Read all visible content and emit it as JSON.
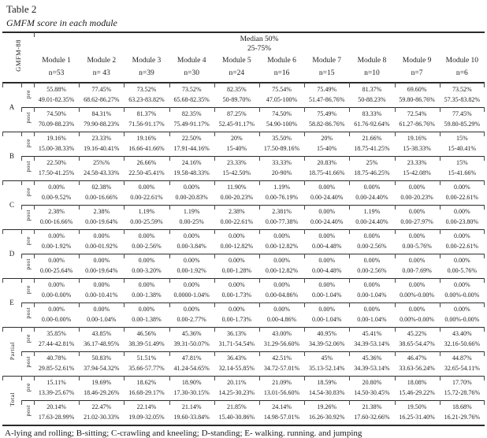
{
  "colors": {
    "text": "#1c1c1c",
    "rule": "#2b2b2b",
    "background": "#ffffff"
  },
  "title": "Table 2",
  "subtitle": "GMFM score in each module",
  "header": {
    "axis_label": "GMFM-88",
    "median_line1": "Median 50%",
    "median_line2": "25-75%",
    "modules": [
      {
        "name": "Module 1",
        "n": "n=53"
      },
      {
        "name": "Module 2",
        "n": "n= 43"
      },
      {
        "name": "Module 3",
        "n": "n=39"
      },
      {
        "name": "Module 4",
        "n": "n=30"
      },
      {
        "name": "Module 5",
        "n": "n=24"
      },
      {
        "name": "Module 6",
        "n": "n=16"
      },
      {
        "name": "Module 7",
        "n": "n=15"
      },
      {
        "name": "Module 8",
        "n": "n=10"
      },
      {
        "name": "Module 9",
        "n": "n=7"
      },
      {
        "name": "Module 10",
        "n": "n=6"
      }
    ]
  },
  "groups": [
    {
      "label": "A",
      "rotated": false,
      "rows": [
        {
          "label": "pre",
          "cells": [
            {
              "m": "55.88%",
              "r": "49.01-82.35%"
            },
            {
              "m": "77.45%",
              "r": "68.62-86.27%"
            },
            {
              "m": "73.52%",
              "r": "63.23-83.82%"
            },
            {
              "m": "73.52%",
              "r": "65.68-82.35%"
            },
            {
              "m": "82.35%",
              "r": "50-89.70%"
            },
            {
              "m": "75.54%",
              "r": "47.05-100%"
            },
            {
              "m": "75.49%",
              "r": "51.47-86.76%"
            },
            {
              "m": "81.37%",
              "r": "50-88.23%"
            },
            {
              "m": "69.60%",
              "r": "59.80-86.76%"
            },
            {
              "m": "73.52%",
              "r": "57.35-83.82%"
            }
          ]
        },
        {
          "label": "post",
          "cells": [
            {
              "m": "74.50%",
              "r": "70.09-88.23%"
            },
            {
              "m": "84.31%",
              "r": "79.90-88.23%"
            },
            {
              "m": "81.37%",
              "r": "71.56-91.17%"
            },
            {
              "m": "82.35%",
              "r": "75.49-91.17%"
            },
            {
              "m": "87.25%",
              "r": "52.45-91.17%"
            },
            {
              "m": "74.50%",
              "r": "54.90-100%"
            },
            {
              "m": "75.49%",
              "r": "58.82-86.76%"
            },
            {
              "m": "83.33%",
              "r": "61.76-92.64%"
            },
            {
              "m": "72.54%",
              "r": "61.27-86.76%"
            },
            {
              "m": "77.45%",
              "r": "59.80-85.29%"
            }
          ]
        }
      ]
    },
    {
      "label": "B",
      "rotated": false,
      "rows": [
        {
          "label": "pre",
          "cells": [
            {
              "m": "19.16%",
              "r": "15.00-38.33%"
            },
            {
              "m": "23.33%",
              "r": "19.16-40.41%"
            },
            {
              "m": "19.16%",
              "r": "16.66-41.66%"
            },
            {
              "m": "22.50%",
              "r": "17.91-44.16%"
            },
            {
              "m": "20%",
              "r": "15-40%"
            },
            {
              "m": "35.50%",
              "r": "17.50-89.16%"
            },
            {
              "m": "20%",
              "r": "15-40%"
            },
            {
              "m": "21.66%",
              "r": "18.75-41.25%"
            },
            {
              "m": "19.16%",
              "r": "15-38.33%"
            },
            {
              "m": "15%",
              "r": "15-40.41%"
            }
          ]
        },
        {
          "label": "post",
          "cells": [
            {
              "m": "22.50%",
              "r": "17.50-41.25%"
            },
            {
              "m": "25%%",
              "r": "24.58-43.33%"
            },
            {
              "m": "26.66%",
              "r": "22.50-45.41%"
            },
            {
              "m": "24.16%",
              "r": "19.58-48.33%"
            },
            {
              "m": "23.33%",
              "r": "15-42.50%"
            },
            {
              "m": "33.33%",
              "r": "20-90%"
            },
            {
              "m": "20.83%",
              "r": "18.75-41.66%"
            },
            {
              "m": "25%",
              "r": "18.75-46.25%"
            },
            {
              "m": "23.33%",
              "r": "15-42.08%"
            },
            {
              "m": "15%",
              "r": "15-41.66%"
            }
          ]
        }
      ]
    },
    {
      "label": "C",
      "rotated": false,
      "rows": [
        {
          "label": "pre",
          "cells": [
            {
              "m": "0.00%",
              "r": "0.00-9.52%"
            },
            {
              "m": "02.38%",
              "r": "0.00-16.66%"
            },
            {
              "m": "0.00%",
              "r": "0.00-22.61%"
            },
            {
              "m": "0.00%",
              "r": "0.00-20.83%"
            },
            {
              "m": "11.90%",
              "r": "0.00-20.23%"
            },
            {
              "m": "1.19%",
              "r": "0.00-76.19%"
            },
            {
              "m": "0.00%",
              "r": "0.00-24.40%"
            },
            {
              "m": "0.00%",
              "r": "0.00-24.40%"
            },
            {
              "m": "0.00%",
              "r": "0.00-20.23%"
            },
            {
              "m": "0.00%",
              "r": "0.00-22.61%"
            }
          ]
        },
        {
          "label": "post",
          "cells": [
            {
              "m": "2.38%",
              "r": "0.00-16.66%"
            },
            {
              "m": "2.38%",
              "r": "0.00-19.64%"
            },
            {
              "m": "1.19%",
              "r": "0.00-25.59%"
            },
            {
              "m": "1.19%",
              "r": "0.00-25%"
            },
            {
              "m": "2.38%",
              "r": "0.00-22.61%"
            },
            {
              "m": "2.381%",
              "r": "0.00-77.38%"
            },
            {
              "m": "0.00%",
              "r": "0.00-24.40%"
            },
            {
              "m": "1.19%",
              "r": "0.00-24.40%"
            },
            {
              "m": "0.00%",
              "r": "0.00-27.97%"
            },
            {
              "m": "0.00%",
              "r": "0.00-23.80%"
            }
          ]
        }
      ]
    },
    {
      "label": "D",
      "rotated": false,
      "rows": [
        {
          "label": "pre",
          "cells": [
            {
              "m": "0.00%",
              "r": "0.00-1.92%"
            },
            {
              "m": "0.00%",
              "r": "0.00-01.92%"
            },
            {
              "m": "0.00%",
              "r": "0.00-2.56%"
            },
            {
              "m": "0.00%",
              "r": "0.00-3.84%"
            },
            {
              "m": "0.00%",
              "r": "0.00-12.82%"
            },
            {
              "m": "0.00%",
              "r": "0.00-12.82%"
            },
            {
              "m": "0.00%",
              "r": "0.00-4.48%"
            },
            {
              "m": "0.00%",
              "r": "0.00-2.56%"
            },
            {
              "m": "0.00%",
              "r": "0.00-5.76%"
            },
            {
              "m": "0.00%",
              "r": "0.00-22.61%"
            }
          ]
        },
        {
          "label": "post",
          "cells": [
            {
              "m": "0.00%",
              "r": "0.00-25.64%"
            },
            {
              "m": "0.00%",
              "r": "0.00-19.64%"
            },
            {
              "m": "0.00%",
              "r": "0.00-3.20%"
            },
            {
              "m": "0.00%",
              "r": "0.00-1.92%"
            },
            {
              "m": "0.00%",
              "r": "0.00-1.28%"
            },
            {
              "m": "0.00%",
              "r": "0.00-12.82%"
            },
            {
              "m": "0.00%",
              "r": "0.00-4.48%"
            },
            {
              "m": "0.00%",
              "r": "0.00-2.56%"
            },
            {
              "m": "0.00%",
              "r": "0.00-7.69%"
            },
            {
              "m": "0.00%",
              "r": "0.00-5.76%"
            }
          ]
        }
      ]
    },
    {
      "label": "E",
      "rotated": false,
      "rows": [
        {
          "label": "pre",
          "cells": [
            {
              "m": "0.00%",
              "r": "0.00-0.00%"
            },
            {
              "m": "0.00%",
              "r": "0.00-10.41%"
            },
            {
              "m": "0.00%",
              "r": "0.00-1.38%"
            },
            {
              "m": "0.00%",
              "r": "0.0000-1.04%"
            },
            {
              "m": "0.00%",
              "r": "0.00-1.73%"
            },
            {
              "m": "0.00%",
              "r": "0.00-04.86%"
            },
            {
              "m": "0.00%",
              "r": "0.00-1.04%"
            },
            {
              "m": "0.00%",
              "r": "0.00-1.04%"
            },
            {
              "m": "0.00%",
              "r": "0.00%-0.00%"
            },
            {
              "m": "0.00%",
              "r": "0.00%-0.00%"
            }
          ]
        },
        {
          "label": "post",
          "cells": [
            {
              "m": "0.00%",
              "r": "0.00-0.00%"
            },
            {
              "m": "0.00%",
              "r": "0.00-1.04%"
            },
            {
              "m": "0.00%",
              "r": "0.00-1.38%"
            },
            {
              "m": "0.00%",
              "r": "0.00-2.77%"
            },
            {
              "m": "0.00%",
              "r": "0.00-1.73%"
            },
            {
              "m": "0.00%",
              "r": "0.00-4.86%"
            },
            {
              "m": "0.00%",
              "r": "0.00-1.04%"
            },
            {
              "m": "0.00%",
              "r": "0.00-1.04%"
            },
            {
              "m": "0.00%",
              "r": "0.00%-0.00%"
            },
            {
              "m": "0.00%",
              "r": "0.00%-0.00%"
            }
          ]
        }
      ]
    },
    {
      "label": "Partial",
      "rotated": true,
      "rows": [
        {
          "label": "pre",
          "cells": [
            {
              "m": "35.85%",
              "r": "27.44-42.81%"
            },
            {
              "m": "43.85%",
              "r": "36.17-48.95%"
            },
            {
              "m": "46.56%",
              "r": "38.39-51.49%"
            },
            {
              "m": "45.36%",
              "r": "39.31-50.07%"
            },
            {
              "m": "36.13%",
              "r": "31.71-54.54%"
            },
            {
              "m": "43.00%",
              "r": "31.29-56.60%"
            },
            {
              "m": "40.95%",
              "r": "34.39-52.06%"
            },
            {
              "m": "45.41%",
              "r": "34.39-53.14%"
            },
            {
              "m": "45.22%",
              "r": "38.65-54.47%"
            },
            {
              "m": "43.40%",
              "r": "32.16-50.66%"
            }
          ]
        },
        {
          "label": "post",
          "cells": [
            {
              "m": "40.78%",
              "r": "29.85-52.61%"
            },
            {
              "m": "50.83%",
              "r": "37.94-54.32%"
            },
            {
              "m": "51.51%",
              "r": "35.66-57.77%"
            },
            {
              "m": "47.81%",
              "r": "41.24-54.65%"
            },
            {
              "m": "36.43%",
              "r": "32.14-55.85%"
            },
            {
              "m": "42.51%",
              "r": "34.72-57.01%"
            },
            {
              "m": "45%",
              "r": "35.13-52.14%"
            },
            {
              "m": "45.36%",
              "r": "34.39-53.14%"
            },
            {
              "m": "46.47%",
              "r": "33.63-56.24%"
            },
            {
              "m": "44.87%",
              "r": "32.65-54.11%"
            }
          ]
        }
      ]
    },
    {
      "label": "Total",
      "rotated": true,
      "rows": [
        {
          "label": "pre",
          "cells": [
            {
              "m": "15.11%",
              "r": "13.39-25.67%"
            },
            {
              "m": "19.69%",
              "r": "18.46-29.26%"
            },
            {
              "m": "18.62%",
              "r": "16.68-29.17%"
            },
            {
              "m": "18.90%",
              "r": "17.30-30.15%"
            },
            {
              "m": "20.11%",
              "r": "14.25-30.23%"
            },
            {
              "m": "21.09%",
              "r": "13.01-56.60%"
            },
            {
              "m": "18.59%",
              "r": "14.54-30.83%"
            },
            {
              "m": "20.80%",
              "r": "14.50-30.45%"
            },
            {
              "m": "18.08%",
              "r": "15.46-29.22%"
            },
            {
              "m": "17.70%",
              "r": "15.72-28.76%"
            }
          ]
        },
        {
          "label": "post",
          "cells": [
            {
              "m": "20.14%",
              "r": "17.63-28.99%"
            },
            {
              "m": "22.47%",
              "r": "21.02-30.33%"
            },
            {
              "m": "22.14%",
              "r": "19.09-32.05%"
            },
            {
              "m": "21.14%",
              "r": "19.60-33.84%"
            },
            {
              "m": "21.85%",
              "r": "15.40-30.86%"
            },
            {
              "m": "24.14%",
              "r": "14.98-57.01%"
            },
            {
              "m": "19.26%",
              "r": "16.26-30.92%"
            },
            {
              "m": "21.38%",
              "r": "17.60-32.66%"
            },
            {
              "m": "19.50%",
              "r": "16.25-31.40%"
            },
            {
              "m": "18.68%",
              "r": "16.21-29.76%"
            }
          ]
        }
      ]
    }
  ],
  "footnote": "A-lying and rolling; B-sitting; C-crawling and kneeling; D-standing; E- walking. running. and jumping"
}
